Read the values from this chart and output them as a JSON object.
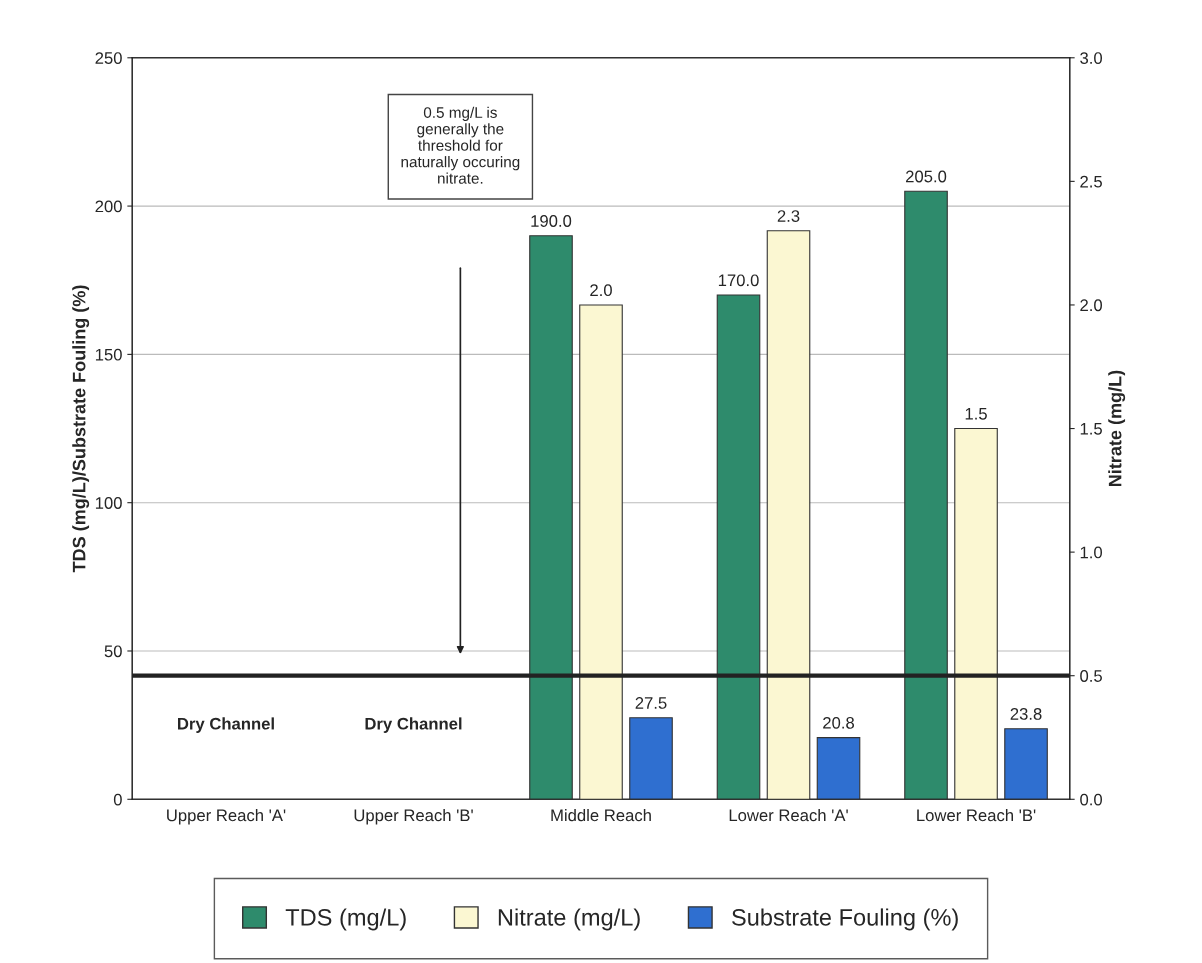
{
  "chart_data": {
    "type": "bar",
    "ylabel": "TDS (mg/L)/Substrate Fouling (%)",
    "y2label": "Nitrate (mg/L)",
    "categories": [
      "Upper Reach 'A'",
      "Upper Reach 'B'",
      "Middle Reach",
      "Lower Reach 'A'",
      "Lower Reach 'B'"
    ],
    "series": [
      {
        "name": "TDS (mg/L)",
        "color": "#2e8b6c",
        "values": [
          null,
          null,
          190,
          170,
          205
        ],
        "value_labels": [
          null,
          null,
          "190.0",
          "170.0",
          "205.0"
        ]
      },
      {
        "name": "Nitrate (mg/L)",
        "color": "#fbf7d2",
        "axis": "y2",
        "values": [
          null,
          null,
          2.0,
          2.3,
          1.5
        ],
        "value_labels": [
          null,
          null,
          "2.0",
          "2.3",
          "1.5"
        ]
      },
      {
        "name": "Substrate Fouling (%)",
        "color": "#2f6fd0",
        "values": [
          null,
          null,
          27.5,
          20.8,
          23.8
        ],
        "value_labels": [
          null,
          null,
          "27.5",
          "20.8",
          "23.8"
        ]
      }
    ],
    "ylim": [
      0,
      250
    ],
    "yticks": [
      0,
      50,
      100,
      150,
      200,
      250
    ],
    "y2lim": [
      0,
      3
    ],
    "y2ticks": [
      {
        "value": 0,
        "label": "0.0"
      },
      {
        "value": 0.5,
        "label": "0.5"
      },
      {
        "value": 1,
        "label": "1.0"
      },
      {
        "value": 1.5,
        "label": "1.5"
      },
      {
        "value": 2,
        "label": "2.0"
      },
      {
        "value": 2.5,
        "label": "2.5"
      },
      {
        "value": 3,
        "label": "3.0"
      }
    ],
    "ref_lines": [
      {
        "axis": "y2",
        "value": 0.5,
        "color": "#222222",
        "line_style": "solid"
      }
    ],
    "annotations": [
      "0.5 mg/L is\ngenerally the\nthreshold for\nnaturally occuring\nnitrate.",
      "Dry Channel",
      "Dry Channel"
    ],
    "grid": "y",
    "legend": "bottom"
  }
}
